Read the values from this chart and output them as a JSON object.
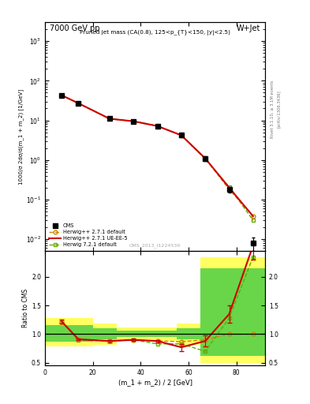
{
  "title_left": "7000 GeV pp",
  "title_right": "W+Jet",
  "plot_title": "Pruned jet mass (CA(0.8), 125<p_{T}<150, |y|<2.5)",
  "xlabel": "(m_1 + m_2) / 2 [GeV]",
  "ylabel_main": "1000/σ 2dσ/d(m_1 + m_2) [1/GeV]",
  "ylabel_ratio": "Ratio to CMS",
  "right_label": "Rivet 3.1.10, ≥ 3.1M events",
  "right_label2": "[arXiv:1306.3436]",
  "watermark": "CMS_2013_I1224539",
  "cms_x": [
    7,
    14,
    27,
    37,
    47,
    57,
    67,
    77,
    87
  ],
  "cms_y": [
    43,
    27,
    11,
    9.5,
    7.2,
    4.2,
    1.1,
    0.18,
    0.008
  ],
  "cms_yerr": [
    3,
    2,
    0.8,
    0.7,
    0.5,
    0.4,
    0.15,
    0.03,
    0.003
  ],
  "hw271_def_x": [
    7,
    14,
    27,
    37,
    47,
    57,
    67,
    77,
    87
  ],
  "hw271_def_y": [
    43,
    27,
    11,
    9.5,
    7.2,
    4.2,
    1.1,
    0.18,
    0.038
  ],
  "hw271_uee5_x": [
    7,
    14,
    27,
    37,
    47,
    57,
    67,
    77,
    87
  ],
  "hw271_uee5_y": [
    43,
    27,
    11,
    9.5,
    7.2,
    4.2,
    1.1,
    0.2,
    0.038
  ],
  "hw721_def_x": [
    7,
    14,
    27,
    37,
    47,
    57,
    67,
    77,
    87
  ],
  "hw721_def_y": [
    43,
    27,
    11,
    9.5,
    7.2,
    4.2,
    1.05,
    0.21,
    0.03
  ],
  "ratio_hw271_def_x": [
    7,
    14,
    27,
    37,
    47,
    57,
    67,
    77,
    87
  ],
  "ratio_hw271_def_y": [
    1.22,
    0.91,
    0.88,
    0.9,
    0.88,
    0.87,
    0.9,
    1.0,
    1.0
  ],
  "ratio_hw271_uee5_x": [
    7,
    14,
    27,
    37,
    47,
    57,
    67,
    77,
    87
  ],
  "ratio_hw271_uee5_y": [
    1.22,
    0.91,
    0.88,
    0.9,
    0.88,
    0.77,
    0.88,
    1.35,
    2.55
  ],
  "ratio_hw271_uee5_yerr": [
    0.04,
    0.02,
    0.02,
    0.02,
    0.02,
    0.06,
    0.1,
    0.15,
    0.25
  ],
  "ratio_hw721_def_x": [
    7,
    14,
    27,
    37,
    47,
    57,
    67,
    77,
    87
  ],
  "ratio_hw721_def_y": [
    1.22,
    0.9,
    0.88,
    0.9,
    0.83,
    0.83,
    0.7,
    1.28,
    2.35
  ],
  "band_yellow_x": [
    0,
    10,
    20,
    30,
    40,
    55,
    65,
    75,
    92
  ],
  "band_yellow_lo": [
    0.78,
    0.78,
    0.82,
    0.88,
    0.88,
    0.82,
    0.5,
    0.5,
    0.5
  ],
  "band_yellow_hi": [
    1.28,
    1.28,
    1.18,
    1.12,
    1.12,
    1.18,
    2.35,
    2.35,
    2.35
  ],
  "band_green_x": [
    0,
    10,
    20,
    30,
    40,
    55,
    65,
    75,
    92
  ],
  "band_green_lo": [
    0.87,
    0.87,
    0.91,
    0.95,
    0.95,
    0.91,
    0.62,
    0.62,
    0.62
  ],
  "band_green_hi": [
    1.16,
    1.16,
    1.1,
    1.06,
    1.06,
    1.1,
    2.15,
    2.15,
    2.15
  ],
  "color_cms": "#000000",
  "color_hw271_def": "#cc8800",
  "color_hw271_uee5": "#cc0000",
  "color_hw721_def": "#66aa00",
  "color_yellow": "#ffff44",
  "color_green": "#44cc44",
  "ylim_main": [
    0.005,
    3000
  ],
  "ylim_ratio": [
    0.45,
    2.45
  ],
  "xlim": [
    0,
    92
  ]
}
